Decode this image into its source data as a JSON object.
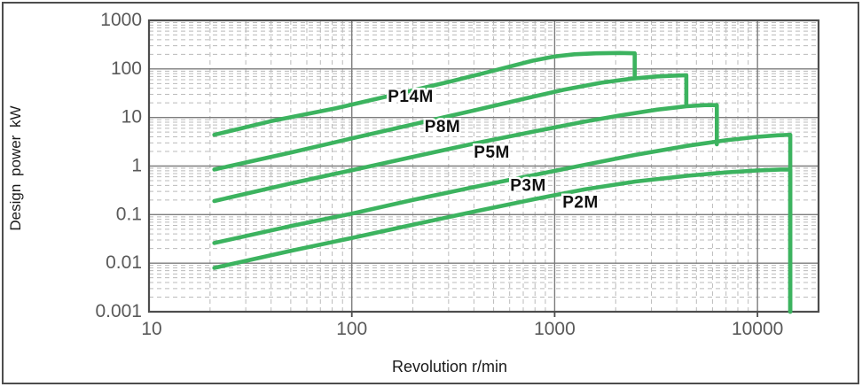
{
  "chart_data": {
    "type": "line",
    "title": "",
    "xlabel": "Revolution r/min",
    "ylabel": "Design power kW",
    "x_scale": "log",
    "y_scale": "log",
    "xlim": [
      10,
      20000
    ],
    "ylim": [
      0.001,
      1000
    ],
    "x_ticks": [
      10,
      100,
      1000,
      10000
    ],
    "x_tick_labels": [
      "10",
      "100",
      "1000",
      "10000"
    ],
    "y_ticks": [
      1000,
      100,
      10,
      1,
      0.1,
      0.01,
      0.001
    ],
    "y_tick_labels": [
      "1000",
      "100",
      "10",
      "1",
      "0.1",
      "0.01",
      "0.001"
    ],
    "grid": {
      "major": "solid",
      "minor": "dashed",
      "minor_subdivisions": [
        2,
        3,
        4,
        5,
        6,
        7,
        8,
        9
      ]
    },
    "legend_position": "inline-labels-on-curves",
    "colors": {
      "curve": "#3cb35f",
      "major_grid": "#7d7d7d",
      "minor_grid": "#bbbbbb",
      "frame": "#4d4d4d",
      "tick_text": "#595959",
      "axis_title_text": "#1a1a1a",
      "series_label_text": "#111111"
    },
    "series": [
      {
        "name": "P14M",
        "label_at": {
          "rpm": 195,
          "kw": 21
        },
        "points": [
          [
            21,
            4.4
          ],
          [
            40,
            8.4
          ],
          [
            84,
            15.6
          ],
          [
            160,
            29
          ],
          [
            300,
            54
          ],
          [
            500,
            92
          ],
          [
            780,
            148
          ],
          [
            1000,
            180
          ],
          [
            1250,
            200
          ],
          [
            1600,
            210
          ],
          [
            2100,
            213
          ],
          [
            2480,
            210
          ],
          [
            2480,
            68
          ]
        ]
      },
      {
        "name": "P8M",
        "label_at": {
          "rpm": 280,
          "kw": 5
        },
        "points": [
          [
            21,
            0.85
          ],
          [
            50,
            1.9
          ],
          [
            100,
            3.7
          ],
          [
            200,
            7.2
          ],
          [
            400,
            14
          ],
          [
            700,
            24
          ],
          [
            1100,
            37
          ],
          [
            1700,
            52
          ],
          [
            2400,
            63
          ],
          [
            3200,
            70
          ],
          [
            4000,
            73
          ],
          [
            4460,
            74
          ],
          [
            4460,
            18
          ]
        ]
      },
      {
        "name": "P5M",
        "label_at": {
          "rpm": 490,
          "kw": 1.5
        },
        "points": [
          [
            21,
            0.19
          ],
          [
            50,
            0.44
          ],
          [
            100,
            0.82
          ],
          [
            200,
            1.55
          ],
          [
            400,
            2.9
          ],
          [
            800,
            5.2
          ],
          [
            1400,
            8.2
          ],
          [
            2100,
            11
          ],
          [
            3200,
            14.5
          ],
          [
            4460,
            17
          ],
          [
            5500,
            18
          ],
          [
            6300,
            18
          ],
          [
            6300,
            2.8
          ]
        ]
      },
      {
        "name": "P3M",
        "label_at": {
          "rpm": 740,
          "kw": 0.31
        },
        "points": [
          [
            21,
            0.026
          ],
          [
            50,
            0.058
          ],
          [
            100,
            0.105
          ],
          [
            200,
            0.2
          ],
          [
            400,
            0.37
          ],
          [
            800,
            0.66
          ],
          [
            1400,
            1.05
          ],
          [
            2500,
            1.7
          ],
          [
            4500,
            2.6
          ],
          [
            7000,
            3.4
          ],
          [
            10000,
            4.0
          ],
          [
            12500,
            4.3
          ],
          [
            14500,
            4.4
          ],
          [
            14500,
            0.001
          ]
        ]
      },
      {
        "name": "P2M",
        "label_at": {
          "rpm": 1340,
          "kw": 0.14
        },
        "points": [
          [
            21,
            0.008
          ],
          [
            50,
            0.018
          ],
          [
            100,
            0.033
          ],
          [
            200,
            0.062
          ],
          [
            400,
            0.115
          ],
          [
            800,
            0.21
          ],
          [
            1400,
            0.33
          ],
          [
            2500,
            0.48
          ],
          [
            4500,
            0.63
          ],
          [
            7000,
            0.74
          ],
          [
            10000,
            0.81
          ],
          [
            13000,
            0.85
          ],
          [
            14500,
            0.85
          ],
          [
            14500,
            0.001
          ]
        ]
      }
    ]
  }
}
